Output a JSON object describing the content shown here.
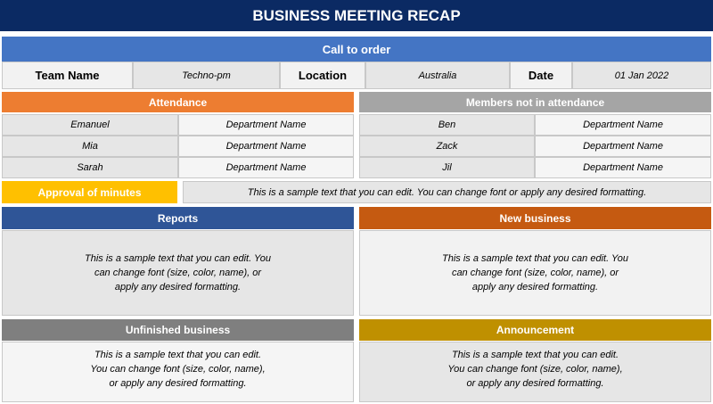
{
  "title": "BUSINESS MEETING RECAP",
  "call_to_order": {
    "header": "Call to order",
    "team_name_label": "Team Name",
    "team_name_value": "Techno-pm",
    "location_label": "Location",
    "location_value": "Australia",
    "date_label": "Date",
    "date_value": "01 Jan 2022"
  },
  "attendance": {
    "header": "Attendance",
    "rows": [
      {
        "name": "Emanuel",
        "department": "Department Name"
      },
      {
        "name": "Mia",
        "department": "Department Name"
      },
      {
        "name": "Sarah",
        "department": "Department Name"
      }
    ]
  },
  "not_attending": {
    "header": "Members not in attendance",
    "rows": [
      {
        "name": "Ben",
        "department": "Department Name"
      },
      {
        "name": "Zack",
        "department": "Department Name"
      },
      {
        "name": "Jil",
        "department": "Department Name"
      }
    ]
  },
  "approval": {
    "label": "Approval of minutes",
    "text": "This is a sample text that you can edit. You can change font or apply any desired formatting."
  },
  "reports": {
    "header": "Reports",
    "text": "This is a sample text that you can edit. You\ncan change font (size, color, name), or\napply any desired formatting."
  },
  "new_business": {
    "header": "New business",
    "text": "This is a sample text that you can edit. You\ncan change font (size, color, name), or\napply any desired formatting."
  },
  "unfinished_business": {
    "header": "Unfinished business",
    "text": "This is a sample text that you can edit.\nYou can change font (size, color, name),\nor apply any desired formatting."
  },
  "announcement": {
    "header": "Announcement",
    "text": "This is a sample text that you can edit.\nYou can change font (size, color, name),\nor apply any desired formatting."
  },
  "colors": {
    "title_bg": "#0b2a63",
    "call_bg": "#4475c4",
    "attendance_bg": "#ed7d31",
    "not_attending_bg": "#a5a5a5",
    "approval_bg": "#ffc000",
    "reports_bg": "#2f5597",
    "new_business_bg": "#c55a11",
    "unfinished_bg": "#7f7f7f",
    "announcement_bg": "#bf9000"
  }
}
